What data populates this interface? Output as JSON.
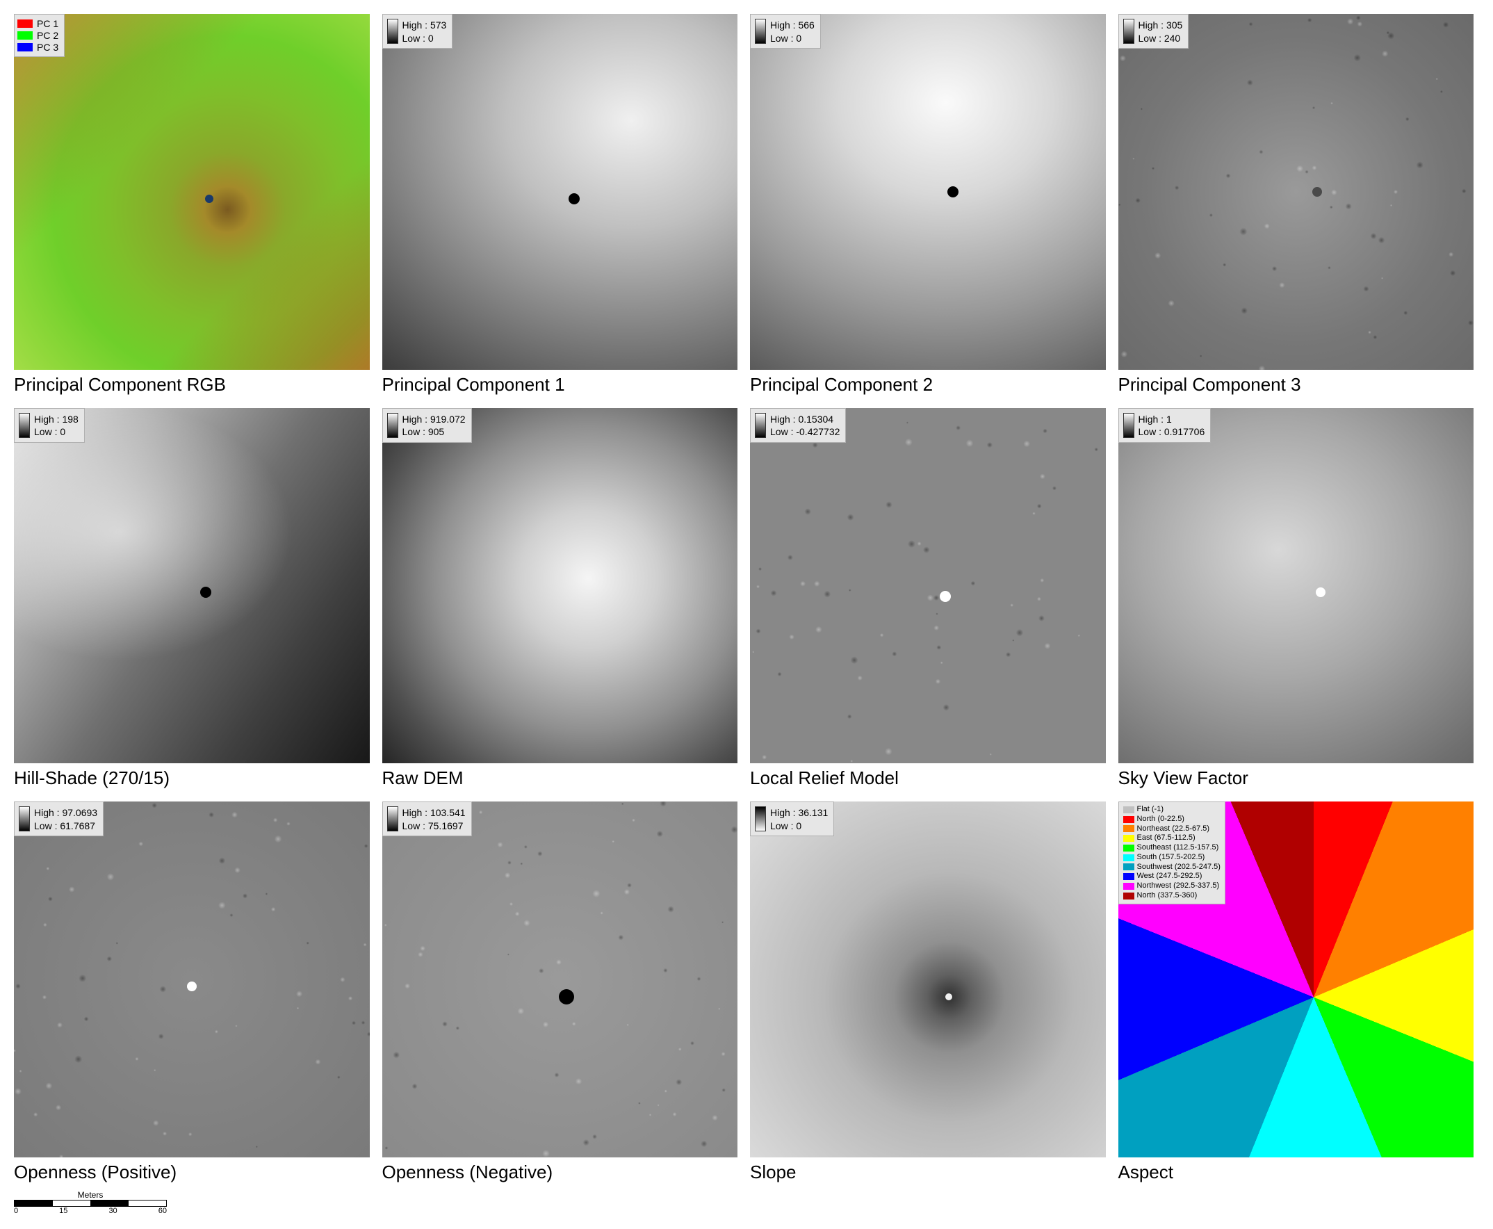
{
  "layout": {
    "rows": 3,
    "cols": 4,
    "background_color": "#ffffff",
    "caption_fontsize": 26,
    "legend_bg": "#e6e6e6",
    "legend_border": "#b0b0b0"
  },
  "panels": [
    {
      "id": "pc_rgb",
      "caption": "Principal Component RGB",
      "legend_type": "rgb",
      "rgb_legend": [
        {
          "color": "#ff0000",
          "label": "PC 1"
        },
        {
          "color": "#00ff00",
          "label": "PC 2"
        },
        {
          "color": "#0000ff",
          "label": "PC 3"
        }
      ],
      "style": {
        "gradient": "radial-gradient(circle at 60% 55%, #7a5a20 0%, #a48a2a 8%, #8aa82a 20%, #7fbf2a 40%, #6fcf2a 60%, #8fd83a 80%, #b0e050 100%)",
        "overlay": "linear-gradient(135deg, rgba(200,60,30,0.5) 0%, rgba(200,60,30,0) 35%), linear-gradient(315deg, rgba(200,60,30,0.6) 0%, rgba(200,60,30,0) 30%)",
        "center_dot": {
          "x": "55%",
          "y": "52%",
          "size": "12px",
          "color": "#1a3a6a"
        }
      }
    },
    {
      "id": "pc1",
      "caption": "Principal Component 1",
      "legend_type": "ramp",
      "high": "High : 573",
      "low": "Low : 0",
      "style": {
        "gradient": "radial-gradient(ellipse 140% 120% at 70% 30%, #f0f0f0 0%, #c0c0c0 25%, #808080 50%, #404040 75%, #151515 100%)",
        "center_dot": {
          "x": "54%",
          "y": "52%",
          "size": "16px",
          "color": "#000"
        }
      }
    },
    {
      "id": "pc2",
      "caption": "Principal Component 2",
      "legend_type": "ramp",
      "high": "High : 566",
      "low": "Low : 0",
      "style": {
        "gradient": "radial-gradient(ellipse 150% 130% at 55% 25%, #fafafa 0%, #d8d8d8 20%, #9a9a9a 45%, #555555 70%, #1a1a1a 100%)",
        "center_dot": {
          "x": "57%",
          "y": "50%",
          "size": "16px",
          "color": "#000"
        }
      }
    },
    {
      "id": "pc3",
      "caption": "Principal Component 3",
      "legend_type": "ramp",
      "high": "High : 305",
      "low": "Low : 240",
      "style": {
        "gradient": "radial-gradient(circle at 50% 50%, #9a9a9a 0%, #888888 30%, #777777 60%, #6a6a6a 100%)",
        "noise": true,
        "center_dot": {
          "x": "56%",
          "y": "50%",
          "size": "14px",
          "color": "#4a4a4a"
        }
      }
    },
    {
      "id": "hillshade",
      "caption": "Hill-Shade (270/15)",
      "legend_type": "ramp",
      "high": "High : 198",
      "low": "Low : 0",
      "style": {
        "gradient": "linear-gradient(125deg, #e8e8e8 0%, #b0b0b0 25%, #707070 50%, #404040 75%, #181818 100%)",
        "overlay": "radial-gradient(ellipse 80% 60% at 30% 35%, rgba(255,255,255,0.6) 0%, rgba(255,255,255,0) 60%)",
        "center_dot": {
          "x": "54%",
          "y": "52%",
          "size": "16px",
          "color": "#000"
        }
      }
    },
    {
      "id": "rawdem",
      "caption": "Raw DEM",
      "legend_type": "ramp",
      "high": "High : 919.072",
      "low": "Low : 905",
      "style": {
        "gradient": "radial-gradient(circle at 58% 48%, #f5f5f5 0%, #d0d0d0 25%, #909090 55%, #505050 80%, #252525 100%)"
      }
    },
    {
      "id": "lrm",
      "caption": "Local Relief Model",
      "legend_type": "ramp",
      "high": "High : 0.15304",
      "low": "Low : -0.427732",
      "style": {
        "gradient": "radial-gradient(circle at 50% 50%, #888 0%, #888 100%)",
        "noise": true,
        "center_dot": {
          "x": "55%",
          "y": "53%",
          "size": "16px",
          "color": "#ffffff"
        }
      }
    },
    {
      "id": "svf",
      "caption": "Sky View Factor",
      "legend_type": "ramp",
      "high": "High : 1",
      "low": "Low : 0.917706",
      "style": {
        "gradient": "radial-gradient(ellipse 130% 120% at 45% 40%, #d8d8d8 0%, #a8a8a8 30%, #707070 60%, #404040 90%)",
        "center_dot": {
          "x": "57%",
          "y": "52%",
          "size": "14px",
          "color": "#ffffff"
        }
      }
    },
    {
      "id": "open_pos",
      "caption": "Openness (Positive)",
      "legend_type": "ramp",
      "high": "High : 97.0693",
      "low": "Low : 61.7687",
      "style": {
        "gradient": "radial-gradient(circle at 50% 50%, #8a8a8a 0%, #7a7a7a 100%)",
        "noise": true,
        "center_dot": {
          "x": "50%",
          "y": "52%",
          "size": "14px",
          "color": "#ffffff"
        }
      }
    },
    {
      "id": "open_neg",
      "caption": "Openness (Negative)",
      "legend_type": "ramp",
      "high": "High : 103.541",
      "low": "Low : 75.1697",
      "style": {
        "gradient": "radial-gradient(circle at 50% 50%, #9a9a9a 0%, #8a8a8a 100%)",
        "noise": true,
        "center_dot": {
          "x": "52%",
          "y": "55%",
          "size": "22px",
          "color": "#000000"
        }
      }
    },
    {
      "id": "slope",
      "caption": "Slope",
      "legend_type": "ramp_inv",
      "high": "High : 36.131",
      "low": "Low : 0",
      "style": {
        "gradient": "radial-gradient(circle at 56% 55%, #303030 0%, #606060 8%, #909090 20%, #b8b8b8 45%, #e0e0e0 100%)",
        "center_dot": {
          "x": "56%",
          "y": "55%",
          "size": "10px",
          "color": "#f0f0f0"
        }
      }
    },
    {
      "id": "aspect",
      "caption": "Aspect",
      "legend_type": "aspect",
      "aspect_legend": [
        {
          "color": "#c0c0c0",
          "label": "Flat (-1)"
        },
        {
          "color": "#ff0000",
          "label": "North (0-22.5)"
        },
        {
          "color": "#ff8000",
          "label": "Northeast (22.5-67.5)"
        },
        {
          "color": "#ffff00",
          "label": "East (67.5-112.5)"
        },
        {
          "color": "#00ff00",
          "label": "Southeast (112.5-157.5)"
        },
        {
          "color": "#00ffff",
          "label": "South (157.5-202.5)"
        },
        {
          "color": "#00a0c0",
          "label": "Southwest (202.5-247.5)"
        },
        {
          "color": "#0000ff",
          "label": "West (247.5-292.5)"
        },
        {
          "color": "#ff00ff",
          "label": "Northwest (292.5-337.5)"
        },
        {
          "color": "#b00000",
          "label": "North (337.5-360)"
        }
      ],
      "style": {
        "gradient": "conic-gradient(from 0deg at 55% 55%, #ff0000 0deg 22deg, #ff8000 22deg 67deg, #ffff00 67deg 112deg, #00ff00 112deg 157deg, #00ffff 157deg 202deg, #00a0c0 202deg 247deg, #0000ff 247deg 292deg, #ff00ff 292deg 337deg, #b00000 337deg 360deg)"
      }
    }
  ],
  "scalebar": {
    "unit": "Meters",
    "ticks": [
      "0",
      "15",
      "30",
      "60"
    ]
  }
}
